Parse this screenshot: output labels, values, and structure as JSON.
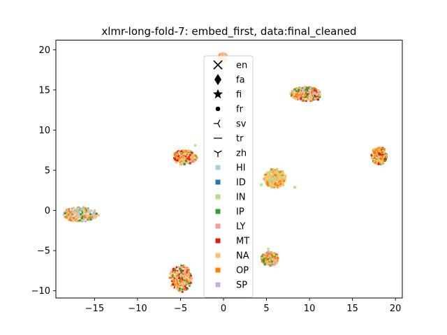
{
  "chart_data": {
    "type": "scatter",
    "title": "xlmr-long-fold-7: embed_first, data:final_cleaned",
    "xlabel": "",
    "ylabel": "",
    "xlim": [
      -19.5,
      20.8
    ],
    "ylim": [
      -10.9,
      21.2
    ],
    "xticks": [
      -15,
      -10,
      -5,
      0,
      5,
      10,
      15,
      20
    ],
    "yticks": [
      -10,
      -5,
      0,
      5,
      10,
      15,
      20
    ],
    "xtick_labels": [
      "−15",
      "−10",
      "−5",
      "0",
      "5",
      "10",
      "15",
      "20"
    ],
    "ytick_labels": [
      "−10",
      "−5",
      "0",
      "5",
      "10",
      "15",
      "20"
    ],
    "grid": false,
    "legend_position": "upper-center",
    "marker_legend": [
      {
        "label": "en",
        "marker": "x"
      },
      {
        "label": "fa",
        "marker": "thin-diamond"
      },
      {
        "label": "fi",
        "marker": "star"
      },
      {
        "label": "fr",
        "marker": "point"
      },
      {
        "label": "sv",
        "marker": "tri-left"
      },
      {
        "label": "tr",
        "marker": "hline"
      },
      {
        "label": "zh",
        "marker": "tri-down"
      }
    ],
    "color_legend": [
      {
        "label": "HI",
        "color": "#a6cee3"
      },
      {
        "label": "ID",
        "color": "#1f78b4"
      },
      {
        "label": "IN",
        "color": "#b2df8a"
      },
      {
        "label": "IP",
        "color": "#33a02c"
      },
      {
        "label": "LY",
        "color": "#fb9a99"
      },
      {
        "label": "MT",
        "color": "#e31a1c"
      },
      {
        "label": "NA",
        "color": "#fdbf6f"
      },
      {
        "label": "OP",
        "color": "#ff7f00"
      },
      {
        "label": "SP",
        "color": "#cab2d6"
      }
    ],
    "clusters": [
      {
        "cx": -16.6,
        "cy": -0.5,
        "rx": 2.1,
        "ry": 0.9,
        "mix": [
          "NA",
          "OP",
          "SP",
          "IP",
          "HI"
        ]
      },
      {
        "cx": -4.5,
        "cy": 6.6,
        "rx": 1.4,
        "ry": 0.9,
        "mix": [
          "NA",
          "OP",
          "MT",
          "IP",
          "LY"
        ]
      },
      {
        "cx": -5.0,
        "cy": -8.5,
        "rx": 1.3,
        "ry": 1.7,
        "mix": [
          "NA",
          "OP",
          "MT",
          "IP",
          "LY"
        ]
      },
      {
        "cx": -0.1,
        "cy": 19.0,
        "rx": 0.5,
        "ry": 0.6,
        "mix": [
          "NA",
          "OP",
          "SP"
        ]
      },
      {
        "cx": 9.6,
        "cy": 14.5,
        "rx": 1.8,
        "ry": 0.9,
        "mix": [
          "NA",
          "OP",
          "SP",
          "IP",
          "MT"
        ]
      },
      {
        "cx": 6.0,
        "cy": 4.0,
        "rx": 1.3,
        "ry": 1.2,
        "mix": [
          "NA",
          "OP",
          "IN"
        ]
      },
      {
        "cx": 18.1,
        "cy": 6.8,
        "rx": 0.9,
        "ry": 1.1,
        "mix": [
          "NA",
          "MT",
          "OP",
          "IP"
        ]
      },
      {
        "cx": 5.4,
        "cy": -6.0,
        "rx": 1.0,
        "ry": 0.9,
        "mix": [
          "NA",
          "OP",
          "IP",
          "SP"
        ]
      }
    ],
    "outliers": [
      {
        "x": 4.4,
        "y": 3.2,
        "cls": "IN",
        "marker": "star"
      },
      {
        "x": 8.3,
        "y": 2.9,
        "cls": "IN",
        "marker": "star"
      },
      {
        "x": 0.6,
        "y": 14.8,
        "cls": "IN",
        "marker": "point"
      },
      {
        "x": -3.3,
        "y": 8.1,
        "cls": "IN",
        "marker": "point"
      },
      {
        "x": 5.2,
        "y": -4.8,
        "cls": "IN",
        "marker": "point"
      },
      {
        "x": 11.0,
        "y": 13.8,
        "cls": "MT",
        "marker": "point"
      }
    ]
  }
}
